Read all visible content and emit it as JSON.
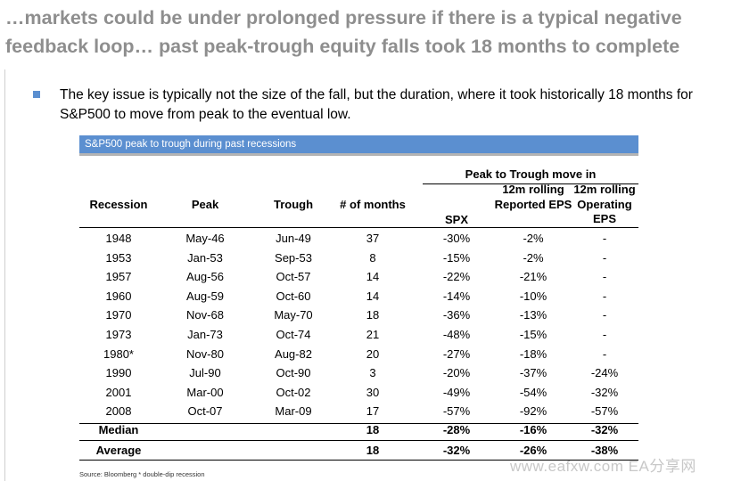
{
  "slide": {
    "title": "…markets could be under prolonged pressure if there is a typical negative feedback loop… past peak-trough equity falls took 18 months to complete",
    "bullet": "The key issue is typically not the size of the fall, but the duration, where it took historically 18 months for S&P500 to move from peak to the eventual low."
  },
  "table": {
    "banner": "S&P500 peak to trough during past recessions",
    "group_header": "Peak to Trough move in",
    "columns": {
      "recession": "Recession",
      "peak": "Peak",
      "trough": "Trough",
      "months": "# of months",
      "spx": "SPX",
      "reported": "12m rolling Reported EPS",
      "operating": "12m rolling Operating EPS"
    },
    "rows": [
      {
        "recession": "1948",
        "peak": "May-46",
        "trough": "Jun-49",
        "months": "37",
        "spx": "-30%",
        "reported": "-2%",
        "operating": "-"
      },
      {
        "recession": "1953",
        "peak": "Jan-53",
        "trough": "Sep-53",
        "months": "8",
        "spx": "-15%",
        "reported": "-2%",
        "operating": "-"
      },
      {
        "recession": "1957",
        "peak": "Aug-56",
        "trough": "Oct-57",
        "months": "14",
        "spx": "-22%",
        "reported": "-21%",
        "operating": "-"
      },
      {
        "recession": "1960",
        "peak": "Aug-59",
        "trough": "Oct-60",
        "months": "14",
        "spx": "-14%",
        "reported": "-10%",
        "operating": "-"
      },
      {
        "recession": "1970",
        "peak": "Nov-68",
        "trough": "May-70",
        "months": "18",
        "spx": "-36%",
        "reported": "-13%",
        "operating": "-"
      },
      {
        "recession": "1973",
        "peak": "Jan-73",
        "trough": "Oct-74",
        "months": "21",
        "spx": "-48%",
        "reported": "-15%",
        "operating": "-"
      },
      {
        "recession": "1980*",
        "peak": "Nov-80",
        "trough": "Aug-82",
        "months": "20",
        "spx": "-27%",
        "reported": "-18%",
        "operating": "-"
      },
      {
        "recession": "1990",
        "peak": "Jul-90",
        "trough": "Oct-90",
        "months": "3",
        "spx": "-20%",
        "reported": "-37%",
        "operating": "-24%"
      },
      {
        "recession": "2001",
        "peak": "Mar-00",
        "trough": "Oct-02",
        "months": "30",
        "spx": "-49%",
        "reported": "-54%",
        "operating": "-32%"
      },
      {
        "recession": "2008",
        "peak": "Oct-07",
        "trough": "Mar-09",
        "months": "17",
        "spx": "-57%",
        "reported": "-92%",
        "operating": "-57%"
      }
    ],
    "summary": [
      {
        "label": "Median",
        "months": "18",
        "spx": "-28%",
        "reported": "-16%",
        "operating": "-32%"
      },
      {
        "label": "Average",
        "months": "18",
        "spx": "-32%",
        "reported": "-26%",
        "operating": "-38%"
      }
    ],
    "source": "Source: Bloomberg * double-dip recession"
  },
  "watermark": "www.eafxw.com  EA分享网",
  "colors": {
    "title_gray": "#8e8e8e",
    "banner_blue": "#5b8fd0",
    "bullet_blue": "#5b8fd0"
  }
}
